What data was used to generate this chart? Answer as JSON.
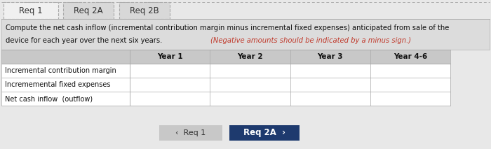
{
  "tabs": [
    "Req 1",
    "Req 2A",
    "Req 2B"
  ],
  "description_line1": "Compute the net cash inflow (incremental contribution margin minus incremental fixed expenses) anticipated from sale of the",
  "description_line2_black": "device for each year over the next six years. ",
  "description_line2_red": "(Negative amounts should be indicated by a minus sign.)",
  "col_headers": [
    "Year 1",
    "Year 2",
    "Year 3",
    "Year 4-6"
  ],
  "row_labels": [
    "Incremental contribution margin",
    "Incrememental fixed expenses",
    "Net cash inflow  (outflow)"
  ],
  "nav_left_label": "‹  Req 1",
  "nav_right_label": "Req 2A  ›",
  "bg_color": "#e8e8e8",
  "tab_bg": "#d8d8d8",
  "desc_bg": "#dcdcdc",
  "table_header_bg": "#c8c8c8",
  "table_cell_bg": "#ffffff",
  "nav_left_bg": "#c8c8c8",
  "nav_right_bg": "#1e3a6e",
  "nav_right_fg": "#ffffff",
  "nav_left_fg": "#333333",
  "border_color": "#aaaaaa",
  "text_black": "#111111",
  "text_red": "#c0392b"
}
